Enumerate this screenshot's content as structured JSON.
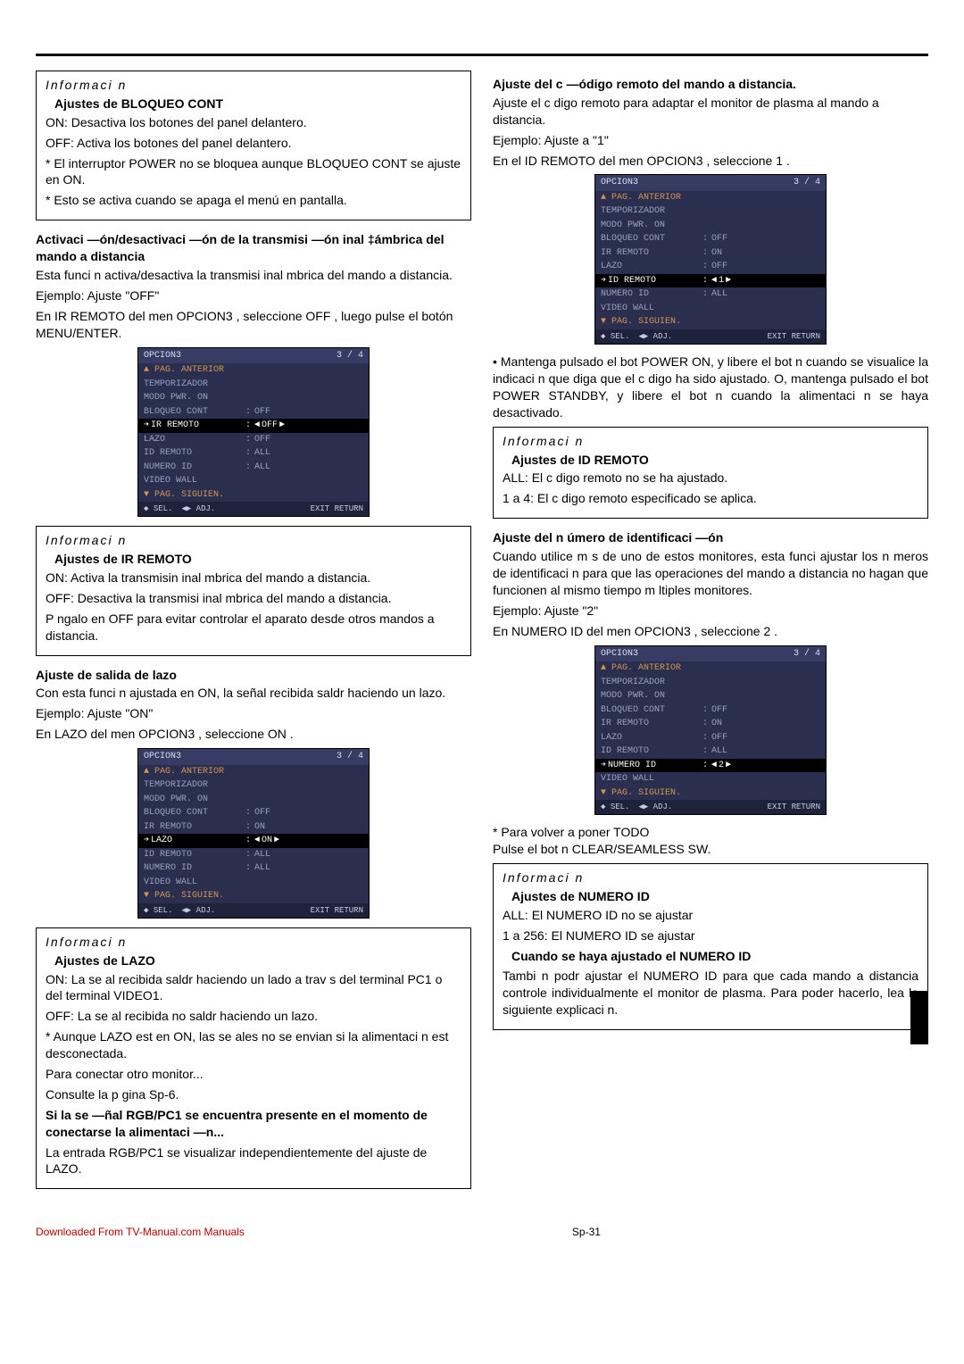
{
  "left": {
    "info1": {
      "title": "Informaci        n",
      "sub": "Ajustes de BLOQUEO CONT",
      "l1": "ON: Desactiva los botones del panel delantero.",
      "l2": "OFF: Activa los botones del panel delantero.",
      "l3": "* El interruptor POWER no se bloquea aunque BLOQUEO CONT se ajuste en ON.",
      "l4": "* Esto se activa cuando se apaga el menú en pantalla."
    },
    "sect1": {
      "head": "Activaci —ón/desactivaci —ón de la transmisi —ón inal ‡ámbrica del mando a distancia",
      "p1": "Esta funci n activa/desactiva la transmisi inal mbrica del mando a distancia.",
      "ex": "Ejemplo: Ajuste \"OFF\"",
      "p2": "En  IR REMOTO  del men  OPCION3 , seleccione OFF , luego pulse el botón MENU/ENTER."
    },
    "osd1": {
      "title": "OPCION3",
      "page": "3 / 4",
      "rows": [
        {
          "label": "PAG. ANTERIOR",
          "val": "",
          "top": true
        },
        {
          "label": "TEMPORIZADOR",
          "val": ""
        },
        {
          "label": "MODO PWR. ON",
          "val": ""
        },
        {
          "label": "BLOQUEO CONT",
          "val": "OFF"
        },
        {
          "label": "IR REMOTO",
          "val": "OFF",
          "hl": true,
          "arrows": true
        },
        {
          "label": "LAZO",
          "val": "OFF"
        },
        {
          "label": "ID REMOTO",
          "val": "ALL"
        },
        {
          "label": "NUMERO ID",
          "val": "ALL"
        },
        {
          "label": "VIDEO WALL",
          "val": ""
        },
        {
          "label": "PAG. SIGUIEN.",
          "val": "",
          "bot": true
        }
      ]
    },
    "info2": {
      "title": "Informaci        n",
      "sub": "Ajustes de IR REMOTO",
      "l1": "ON: Activa la transmisin inal mbrica del mando a distancia.",
      "l2": "OFF: Desactiva la transmisi inal mbrica del mando a distancia.",
      "l3": "P ngalo en OFF  para evitar controlar el aparato desde otros mandos a distancia."
    },
    "sect2": {
      "head": "Ajuste de salida de lazo",
      "p1": "Con esta funci n ajustada en ON, la señal recibida saldr haciendo un lazo.",
      "ex": "Ejemplo: Ajuste \"ON\"",
      "p2": "En  LAZO  del men  OPCION3 , seleccione ON ."
    },
    "osd2": {
      "title": "OPCION3",
      "page": "3 / 4",
      "rows": [
        {
          "label": "PAG. ANTERIOR",
          "val": "",
          "top": true
        },
        {
          "label": "TEMPORIZADOR",
          "val": ""
        },
        {
          "label": "MODO PWR. ON",
          "val": ""
        },
        {
          "label": "BLOQUEO CONT",
          "val": "OFF"
        },
        {
          "label": "IR REMOTO",
          "val": "ON"
        },
        {
          "label": "LAZO",
          "val": "ON",
          "hl": true,
          "arrows": true
        },
        {
          "label": "ID REMOTO",
          "val": "ALL"
        },
        {
          "label": "NUMERO ID",
          "val": "ALL"
        },
        {
          "label": "VIDEO WALL",
          "val": ""
        },
        {
          "label": "PAG. SIGUIEN.",
          "val": "",
          "bot": true
        }
      ]
    },
    "info3": {
      "title": "Informaci        n",
      "sub": "Ajustes de LAZO",
      "l1": "ON: La se al recibida saldr haciendo un lado a trav s del terminal PC1 o del terminal VIDEO1.",
      "l2": "OFF: La se al recibida no saldr haciendo un lazo.",
      "l3": "* Aunque LAZO est en ON, las se ales no se envian si la alimentaci n est desconectada.",
      "l4": "Para conectar otro monitor...",
      "l5": "Consulte la p gina Sp-6.",
      "l6": "Si la se —ñal RGB/PC1 se encuentra presente en el momento de conectarse la alimentaci        —n...",
      "l7": "La entrada RGB/PC1 se visualizar  independientemente del ajuste de LAZO."
    }
  },
  "right": {
    "sect1": {
      "head": "Ajuste del c —ódigo remoto del mando a distancia.",
      "p1": "Ajuste el c digo remoto para adaptar el monitor de plasma al mando a distancia.",
      "ex": "Ejemplo: Ajuste a \"1\"",
      "p2": "En el  ID REMOTO  del men  OPCION3 , seleccione  1 ."
    },
    "osd1": {
      "title": "OPCION3",
      "page": "3 / 4",
      "rows": [
        {
          "label": "PAG. ANTERIOR",
          "val": "",
          "top": true
        },
        {
          "label": "TEMPORIZADOR",
          "val": ""
        },
        {
          "label": "MODO PWR. ON",
          "val": ""
        },
        {
          "label": "BLOQUEO CONT",
          "val": "OFF"
        },
        {
          "label": "IR REMOTO",
          "val": "ON"
        },
        {
          "label": "LAZO",
          "val": "OFF"
        },
        {
          "label": "ID REMOTO",
          "val": "1",
          "hl": true,
          "arrows": true
        },
        {
          "label": "NUMERO ID",
          "val": "ALL"
        },
        {
          "label": "VIDEO WALL",
          "val": ""
        },
        {
          "label": "PAG. SIGUIEN.",
          "val": "",
          "bot": true
        }
      ]
    },
    "bullet": "• Mantenga pulsado el bot  POWER ON, y libere el bot n cuando se visualice la indicaci n que diga que el c digo ha sido ajustado. O, mantenga pulsado el bot  POWER STANDBY, y libere el bot n cuando la alimentaci n se haya desactivado.",
    "info1": {
      "title": "Informaci        n",
      "sub": "Ajustes de ID REMOTO",
      "l1": "ALL: El c digo remoto no se ha ajustado.",
      "l2": "1 a 4: El c digo remoto especificado se aplica."
    },
    "sect2": {
      "head": "Ajuste del n úmero de identificaci —ón",
      "p1": "Cuando utilice m s de uno de estos monitores, esta funci   ajustar los n meros de identificaci n para que las operaciones del mando a distancia no hagan que funcionen al mismo tiempo m ltiples monitores.",
      "ex": "Ejemplo: Ajuste \"2\"",
      "p2": "En  NUMERO ID  del men  OPCION3 , seleccione 2 ."
    },
    "osd2": {
      "title": "OPCION3",
      "page": "3 / 4",
      "rows": [
        {
          "label": "PAG. ANTERIOR",
          "val": "",
          "top": true
        },
        {
          "label": "TEMPORIZADOR",
          "val": ""
        },
        {
          "label": "MODO PWR. ON",
          "val": ""
        },
        {
          "label": "BLOQUEO CONT",
          "val": "OFF"
        },
        {
          "label": "IR REMOTO",
          "val": "ON"
        },
        {
          "label": "LAZO",
          "val": "OFF"
        },
        {
          "label": "ID REMOTO",
          "val": "ALL"
        },
        {
          "label": "NUMERO ID",
          "val": "2",
          "hl": true,
          "arrows": true
        },
        {
          "label": "VIDEO WALL",
          "val": ""
        },
        {
          "label": "PAG. SIGUIEN.",
          "val": "",
          "bot": true
        }
      ]
    },
    "reset": "*  Para volver a poner TODO\n   Pulse el bot n CLEAR/SEAMLESS SW.",
    "info2": {
      "title": "Informaci        n",
      "sub": "Ajustes de NUMERO ID",
      "l1": "ALL: El NUMERO ID no se ajustar",
      "l2": "1 a 256: El NUMERO ID se ajustar",
      "l3": "Cuando se haya ajustado el NUMERO ID",
      "l4": "Tambi n podr  ajustar el NUMERO ID para que cada mando a distancia controle individualmente el monitor de plasma. Para poder hacerlo, lea la siguiente explicaci n."
    }
  },
  "osd_foot": {
    "sel": "◆ SEL.",
    "adj": "◀▶ ADJ.",
    "ret": "EXIT RETURN"
  },
  "footer": {
    "dl": "Downloaded From TV-Manual.com Manuals",
    "pg": "Sp-31"
  }
}
